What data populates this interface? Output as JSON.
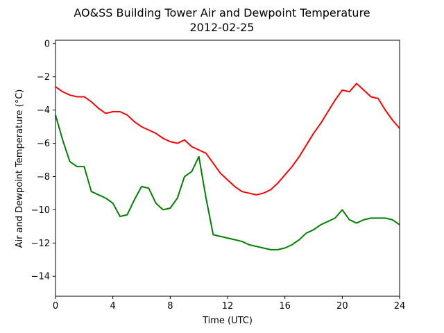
{
  "chart_data": {
    "type": "line",
    "title": "AO&SS Building Tower Air and Dewpoint Temperature",
    "subtitle": "2012-02-25",
    "xlabel": "Time (UTC)",
    "ylabel": "Air and Dewpoint Temperature (°C)",
    "xlim": [
      0,
      24
    ],
    "ylim": [
      -15.2,
      0.2
    ],
    "xticks": [
      0,
      4,
      8,
      12,
      16,
      20,
      24
    ],
    "xtick_labels": [
      "0",
      "4",
      "8",
      "12",
      "16",
      "20",
      "24"
    ],
    "yticks": [
      0,
      -2,
      -4,
      -6,
      -8,
      -10,
      -12,
      -14
    ],
    "ytick_labels": [
      "0",
      "−2",
      "−4",
      "−6",
      "−8",
      "−10",
      "−12",
      "−14"
    ],
    "grid": false,
    "legend": "none",
    "series": [
      {
        "color": "#ff0000",
        "x": [
          0,
          0.5,
          1.0,
          1.5,
          2.0,
          2.5,
          3.0,
          3.5,
          4.0,
          4.5,
          5.0,
          5.5,
          6.0,
          6.5,
          7.0,
          7.5,
          8.0,
          8.5,
          9.0,
          9.5,
          10.0,
          10.5,
          11.0,
          11.5,
          12.0,
          12.5,
          13.0,
          13.5,
          14.0,
          14.5,
          15.0,
          15.5,
          16.0,
          16.5,
          17.0,
          17.5,
          18.0,
          18.5,
          19.0,
          19.5,
          20.0,
          20.5,
          21.0,
          21.5,
          22.0,
          22.5,
          23.0,
          23.5,
          24.0
        ],
        "values": [
          -2.6,
          -2.9,
          -3.1,
          -3.2,
          -3.2,
          -3.5,
          -3.9,
          -4.2,
          -4.1,
          -4.1,
          -4.3,
          -4.7,
          -5.0,
          -5.2,
          -5.4,
          -5.7,
          -5.9,
          -6.0,
          -5.8,
          -6.2,
          -6.4,
          -6.6,
          -7.2,
          -7.8,
          -8.2,
          -8.6,
          -8.9,
          -9.0,
          -9.1,
          -9.0,
          -8.8,
          -8.4,
          -7.9,
          -7.4,
          -6.8,
          -6.1,
          -5.4,
          -4.8,
          -4.1,
          -3.4,
          -2.8,
          -2.9,
          -2.4,
          -2.8,
          -3.2,
          -3.3,
          -4.0,
          -4.6,
          -5.1
        ]
      },
      {
        "color": "#008000",
        "x": [
          0,
          0.5,
          1.0,
          1.5,
          2.0,
          2.5,
          3.0,
          3.5,
          4.0,
          4.5,
          5.0,
          5.5,
          6.0,
          6.5,
          7.0,
          7.5,
          8.0,
          8.5,
          9.0,
          9.5,
          10.0,
          10.5,
          11.0,
          11.5,
          12.0,
          12.5,
          13.0,
          13.5,
          14.0,
          14.5,
          15.0,
          15.5,
          16.0,
          16.5,
          17.0,
          17.5,
          18.0,
          18.5,
          19.0,
          19.5,
          20.0,
          20.5,
          21.0,
          21.5,
          22.0,
          22.5,
          23.0,
          23.5,
          24.0
        ],
        "values": [
          -4.3,
          -5.8,
          -7.1,
          -7.4,
          -7.4,
          -8.9,
          -9.1,
          -9.3,
          -9.6,
          -10.4,
          -10.3,
          -9.4,
          -8.6,
          -8.7,
          -9.6,
          -10.0,
          -9.9,
          -9.3,
          -8.0,
          -7.7,
          -6.8,
          -9.3,
          -11.5,
          -11.6,
          -11.7,
          -11.8,
          -11.9,
          -12.1,
          -12.2,
          -12.3,
          -12.4,
          -12.4,
          -12.3,
          -12.1,
          -11.8,
          -11.4,
          -11.2,
          -10.9,
          -10.7,
          -10.5,
          -10.0,
          -10.6,
          -10.8,
          -10.6,
          -10.5,
          -10.5,
          -10.5,
          -10.6,
          -10.9
        ]
      }
    ]
  }
}
